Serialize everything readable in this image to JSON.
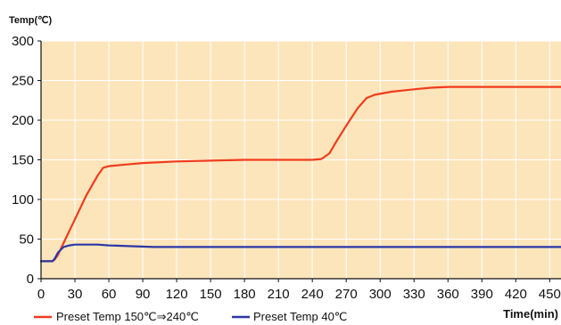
{
  "chart_data": {
    "type": "line",
    "ylabel": "Temp(℃)",
    "xlabel": "Time(min)",
    "xlim": [
      0,
      460
    ],
    "ylim": [
      0,
      300
    ],
    "xticks": [
      0,
      30,
      60,
      90,
      120,
      150,
      180,
      210,
      240,
      270,
      300,
      330,
      360,
      390,
      420,
      450
    ],
    "yticks": [
      0,
      50,
      100,
      150,
      200,
      250,
      300
    ],
    "grid": true,
    "legend_position": "bottom-left",
    "plot_background": "#fde5bb",
    "grid_color": "#ffffff",
    "series": [
      {
        "name": "Preset Temp 150℃⇒240℃",
        "color": "#f03c1e",
        "points": [
          [
            0,
            22
          ],
          [
            10,
            22
          ],
          [
            12,
            24
          ],
          [
            15,
            30
          ],
          [
            20,
            45
          ],
          [
            30,
            75
          ],
          [
            40,
            105
          ],
          [
            50,
            130
          ],
          [
            55,
            140
          ],
          [
            60,
            142
          ],
          [
            75,
            144
          ],
          [
            90,
            146
          ],
          [
            120,
            148
          ],
          [
            150,
            149
          ],
          [
            180,
            150
          ],
          [
            210,
            150
          ],
          [
            240,
            150
          ],
          [
            248,
            151
          ],
          [
            255,
            158
          ],
          [
            262,
            175
          ],
          [
            270,
            193
          ],
          [
            280,
            215
          ],
          [
            288,
            228
          ],
          [
            295,
            232
          ],
          [
            310,
            236
          ],
          [
            330,
            239
          ],
          [
            345,
            241
          ],
          [
            360,
            242
          ],
          [
            390,
            242
          ],
          [
            420,
            242
          ],
          [
            460,
            242
          ]
        ]
      },
      {
        "name": "Preset Temp 40℃",
        "color": "#2a36a8",
        "points": [
          [
            0,
            22
          ],
          [
            10,
            22
          ],
          [
            12,
            25
          ],
          [
            15,
            33
          ],
          [
            20,
            40
          ],
          [
            25,
            42
          ],
          [
            30,
            43
          ],
          [
            40,
            43
          ],
          [
            50,
            43
          ],
          [
            60,
            42
          ],
          [
            80,
            41
          ],
          [
            100,
            40
          ],
          [
            150,
            40
          ],
          [
            200,
            40
          ],
          [
            250,
            40
          ],
          [
            300,
            40
          ],
          [
            350,
            40
          ],
          [
            400,
            40
          ],
          [
            460,
            40
          ]
        ]
      }
    ]
  }
}
